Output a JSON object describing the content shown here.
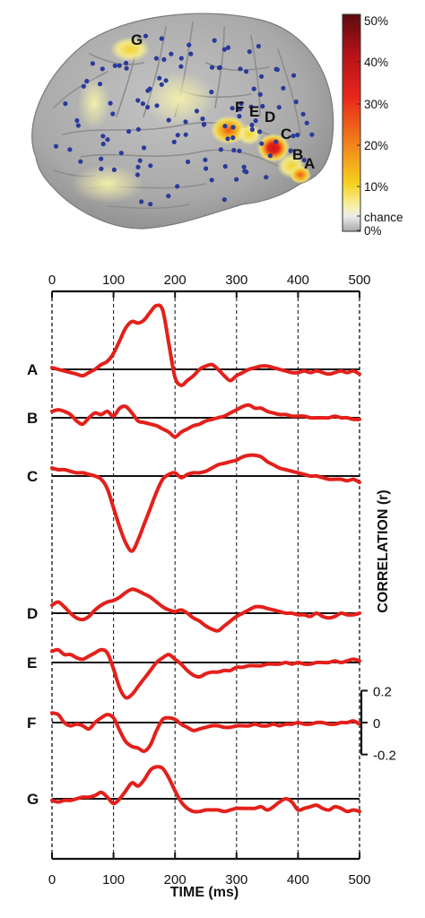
{
  "brain_panel": {
    "electrode_labels": [
      "G",
      "F",
      "E",
      "D",
      "C",
      "B",
      "A"
    ],
    "colorbar": {
      "tick_labels": [
        "50%",
        "40%",
        "30%",
        "20%",
        "10%",
        "chance",
        "0%"
      ],
      "colors": [
        "#5a0c0c",
        "#b3121a",
        "#e8261a",
        "#f17a1a",
        "#f5d21f",
        "#f7f0a0",
        "#ececec",
        "#a8a8a8"
      ]
    }
  },
  "chart_data": {
    "type": "line",
    "xlabel": "TIME (ms)",
    "ylabel": "CORRELATION (r)",
    "xlim": [
      0,
      500
    ],
    "x_ticks": [
      0,
      100,
      200,
      300,
      400,
      500
    ],
    "x_tick_labels": [
      "0",
      "100",
      "200",
      "300",
      "400",
      "500"
    ],
    "y_scale_ticks": [
      0.2,
      0,
      -0.2
    ],
    "y_scale_tick_labels": [
      "0.2",
      "0",
      "-0.2"
    ],
    "gridlines": "vertical dashed at each x tick",
    "line_color": "#e3201b",
    "x": [
      0,
      10,
      20,
      30,
      40,
      50,
      60,
      70,
      80,
      90,
      100,
      110,
      120,
      130,
      140,
      150,
      160,
      170,
      180,
      190,
      200,
      210,
      220,
      230,
      240,
      250,
      260,
      270,
      280,
      290,
      300,
      310,
      320,
      330,
      340,
      350,
      360,
      370,
      380,
      390,
      400,
      410,
      420,
      430,
      440,
      450,
      460,
      470,
      480,
      490,
      500
    ],
    "series": [
      {
        "name": "A",
        "values": [
          0.01,
          0.0,
          -0.01,
          -0.02,
          -0.03,
          -0.04,
          -0.02,
          0.0,
          0.03,
          0.05,
          0.1,
          0.18,
          0.26,
          0.3,
          0.29,
          0.31,
          0.36,
          0.4,
          0.37,
          0.16,
          -0.05,
          -0.1,
          -0.07,
          -0.04,
          0.0,
          0.02,
          0.03,
          0.0,
          -0.04,
          -0.07,
          -0.04,
          -0.02,
          0.0,
          0.01,
          0.02,
          0.02,
          0.01,
          0.0,
          -0.01,
          -0.02,
          -0.02,
          -0.01,
          -0.02,
          -0.01,
          -0.02,
          -0.03,
          -0.02,
          -0.01,
          -0.02,
          -0.01,
          -0.03
        ]
      },
      {
        "name": "B",
        "values": [
          0.04,
          0.05,
          0.04,
          0.02,
          -0.02,
          -0.04,
          0.0,
          0.03,
          0.02,
          0.04,
          0.01,
          0.06,
          0.07,
          0.03,
          -0.02,
          -0.03,
          -0.04,
          -0.05,
          -0.07,
          -0.09,
          -0.12,
          -0.09,
          -0.07,
          -0.05,
          -0.04,
          -0.02,
          -0.01,
          0.0,
          0.01,
          0.03,
          0.05,
          0.07,
          0.08,
          0.06,
          0.06,
          0.04,
          0.03,
          0.02,
          0.02,
          0.01,
          0.01,
          0.01,
          0.0,
          0.0,
          0.0,
          0.0,
          0.01,
          0.0,
          0.0,
          -0.01,
          -0.01
        ]
      },
      {
        "name": "C",
        "values": [
          0.05,
          0.04,
          0.04,
          0.03,
          0.02,
          0.02,
          0.01,
          0.0,
          -0.02,
          -0.08,
          -0.2,
          -0.32,
          -0.42,
          -0.47,
          -0.4,
          -0.3,
          -0.2,
          -0.1,
          -0.02,
          0.01,
          0.02,
          -0.01,
          0.01,
          0.02,
          0.02,
          0.03,
          0.05,
          0.07,
          0.08,
          0.09,
          0.1,
          0.12,
          0.13,
          0.13,
          0.12,
          0.09,
          0.07,
          0.05,
          0.04,
          0.03,
          0.02,
          0.01,
          0.0,
          0.0,
          -0.01,
          -0.02,
          -0.02,
          -0.02,
          -0.03,
          -0.02,
          -0.04
        ]
      },
      {
        "name": "D",
        "values": [
          0.05,
          0.07,
          0.04,
          0.0,
          -0.03,
          -0.04,
          -0.02,
          0.02,
          0.05,
          0.07,
          0.08,
          0.1,
          0.13,
          0.15,
          0.14,
          0.12,
          0.1,
          0.07,
          0.04,
          0.02,
          0.01,
          0.02,
          0.0,
          -0.03,
          -0.05,
          -0.08,
          -0.1,
          -0.11,
          -0.08,
          -0.05,
          -0.02,
          0.0,
          0.02,
          0.04,
          0.04,
          0.03,
          0.02,
          0.01,
          0.0,
          0.0,
          -0.01,
          -0.01,
          -0.02,
          0.0,
          -0.02,
          -0.03,
          -0.02,
          0.0,
          -0.01,
          -0.01,
          0.0
        ]
      },
      {
        "name": "E",
        "values": [
          0.07,
          0.08,
          0.05,
          0.05,
          0.03,
          0.02,
          0.04,
          0.06,
          0.08,
          0.06,
          -0.04,
          -0.16,
          -0.22,
          -0.2,
          -0.15,
          -0.1,
          -0.05,
          0.0,
          0.03,
          0.05,
          0.02,
          -0.01,
          -0.05,
          -0.08,
          -0.09,
          -0.07,
          -0.06,
          -0.06,
          -0.05,
          -0.05,
          -0.03,
          -0.03,
          -0.02,
          -0.02,
          -0.02,
          -0.01,
          -0.01,
          -0.01,
          0.0,
          -0.01,
          0.0,
          -0.01,
          -0.01,
          0.0,
          0.0,
          0.0,
          0.01,
          0.0,
          0.01,
          0.02,
          0.01
        ]
      },
      {
        "name": "F",
        "values": [
          0.06,
          0.05,
          0.0,
          -0.02,
          -0.01,
          -0.02,
          -0.04,
          0.0,
          0.03,
          0.05,
          0.03,
          -0.05,
          -0.12,
          -0.15,
          -0.16,
          -0.18,
          -0.14,
          -0.05,
          0.02,
          0.03,
          0.02,
          -0.01,
          -0.03,
          -0.05,
          -0.04,
          -0.03,
          -0.02,
          -0.02,
          -0.03,
          -0.03,
          -0.02,
          -0.02,
          -0.02,
          -0.01,
          -0.02,
          -0.02,
          -0.01,
          -0.02,
          -0.01,
          -0.01,
          0.0,
          -0.01,
          -0.01,
          0.0,
          0.0,
          -0.01,
          -0.01,
          0.0,
          0.0,
          0.01,
          -0.01
        ]
      },
      {
        "name": "G",
        "values": [
          -0.01,
          -0.02,
          -0.01,
          -0.01,
          0.0,
          0.01,
          0.01,
          0.02,
          0.04,
          0.01,
          -0.03,
          0.0,
          0.05,
          0.1,
          0.08,
          0.12,
          0.18,
          0.2,
          0.19,
          0.13,
          0.05,
          -0.02,
          -0.06,
          -0.08,
          -0.08,
          -0.07,
          -0.07,
          -0.07,
          -0.08,
          -0.07,
          -0.06,
          -0.06,
          -0.06,
          -0.06,
          -0.05,
          -0.07,
          -0.05,
          -0.02,
          0.0,
          -0.02,
          -0.07,
          -0.06,
          -0.05,
          -0.04,
          -0.06,
          -0.07,
          -0.05,
          -0.06,
          -0.08,
          -0.07,
          -0.08
        ]
      }
    ]
  }
}
